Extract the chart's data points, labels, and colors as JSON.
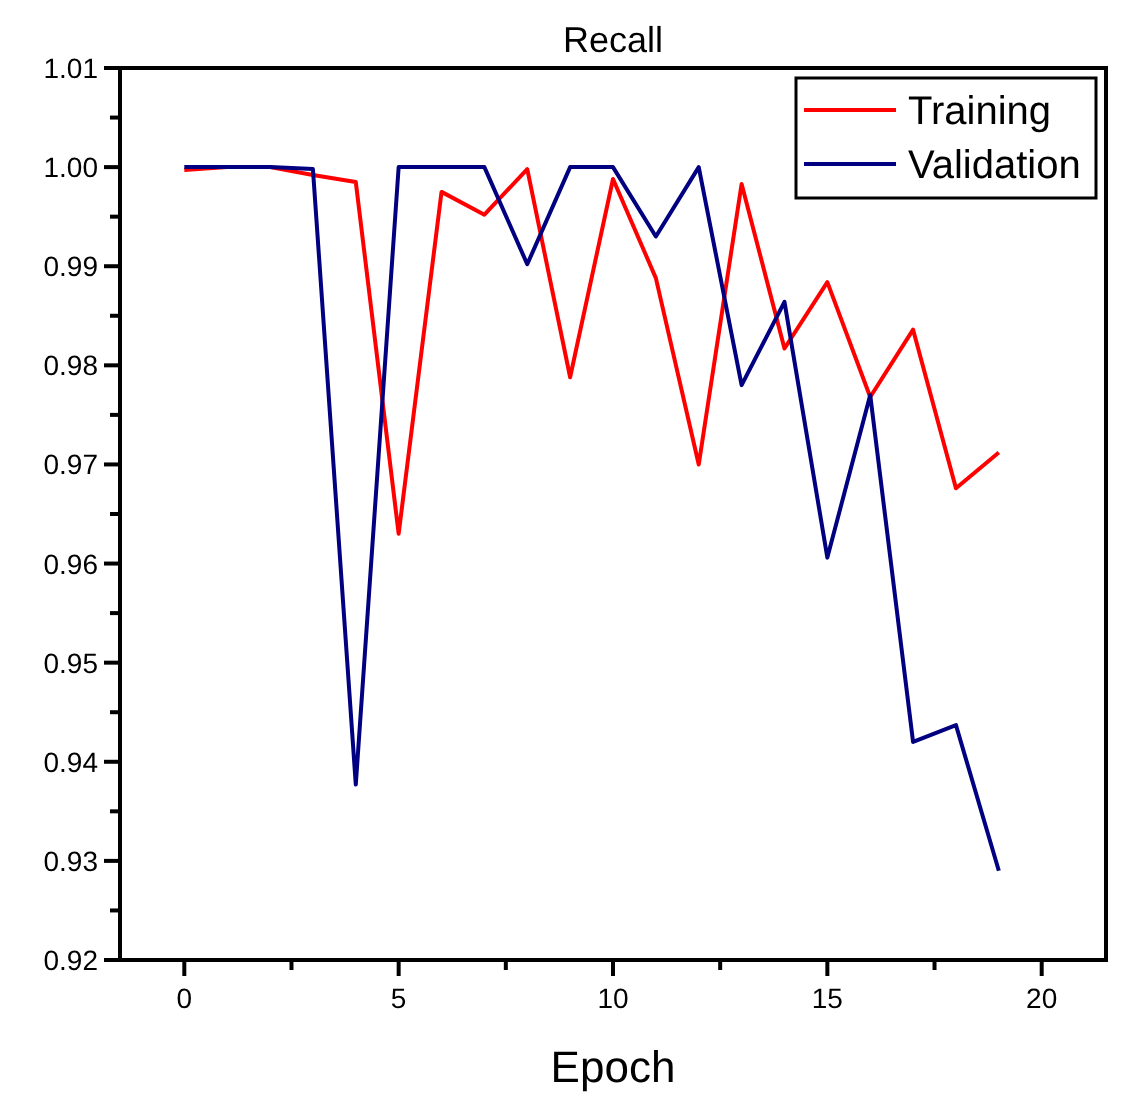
{
  "chart_data": {
    "type": "line",
    "title": "Recall",
    "xlabel": "Epoch",
    "x": [
      0,
      1,
      2,
      3,
      4,
      5,
      6,
      7,
      8,
      9,
      10,
      11,
      12,
      13,
      14,
      15,
      16,
      17,
      18,
      19
    ],
    "series": [
      {
        "name": "Training",
        "color": "#ff0000",
        "values": [
          0.9997,
          1.0,
          1.0,
          0.9992,
          0.9985,
          0.963,
          0.9975,
          0.9952,
          0.9998,
          0.9788,
          0.9988,
          0.9888,
          0.97,
          0.9983,
          0.9817,
          0.9884,
          0.9768,
          0.9836,
          0.9676,
          0.9712
        ]
      },
      {
        "name": "Validation",
        "color": "#000080",
        "values": [
          1.0,
          1.0,
          1.0,
          0.9998,
          0.9377,
          1.0,
          1.0,
          1.0,
          0.9902,
          1.0,
          1.0,
          0.993,
          1.0,
          0.978,
          0.9864,
          0.9606,
          0.977,
          0.942,
          0.9437,
          0.929
        ]
      }
    ],
    "xlim": [
      -1.5,
      21.5
    ],
    "xticks": [
      0,
      {
        "value": 2.5,
        "label": null
      },
      5,
      {
        "value": 7.5,
        "label": null
      },
      10,
      {
        "value": 12.5,
        "label": null
      },
      15,
      {
        "value": 17.5,
        "label": null
      },
      20
    ],
    "ylim": [
      0.92,
      1.01
    ],
    "yticks": [
      {
        "value": 0.92,
        "label": "0.92"
      },
      {
        "value": 0.925,
        "label": null
      },
      {
        "value": 0.93,
        "label": "0.93"
      },
      {
        "value": 0.935,
        "label": null
      },
      {
        "value": 0.94,
        "label": "0.94"
      },
      {
        "value": 0.945,
        "label": null
      },
      {
        "value": 0.95,
        "label": "0.95"
      },
      {
        "value": 0.955,
        "label": null
      },
      {
        "value": 0.96,
        "label": "0.96"
      },
      {
        "value": 0.965,
        "label": null
      },
      {
        "value": 0.97,
        "label": "0.97"
      },
      {
        "value": 0.975,
        "label": null
      },
      {
        "value": 0.98,
        "label": "0.98"
      },
      {
        "value": 0.985,
        "label": null
      },
      {
        "value": 0.99,
        "label": "0.99"
      },
      {
        "value": 0.995,
        "label": null
      },
      {
        "value": 1.0,
        "label": "1.00"
      },
      {
        "value": 1.005,
        "label": null
      },
      {
        "value": 1.01,
        "label": "1.01"
      }
    ],
    "legend": "top right",
    "grid": false
  }
}
